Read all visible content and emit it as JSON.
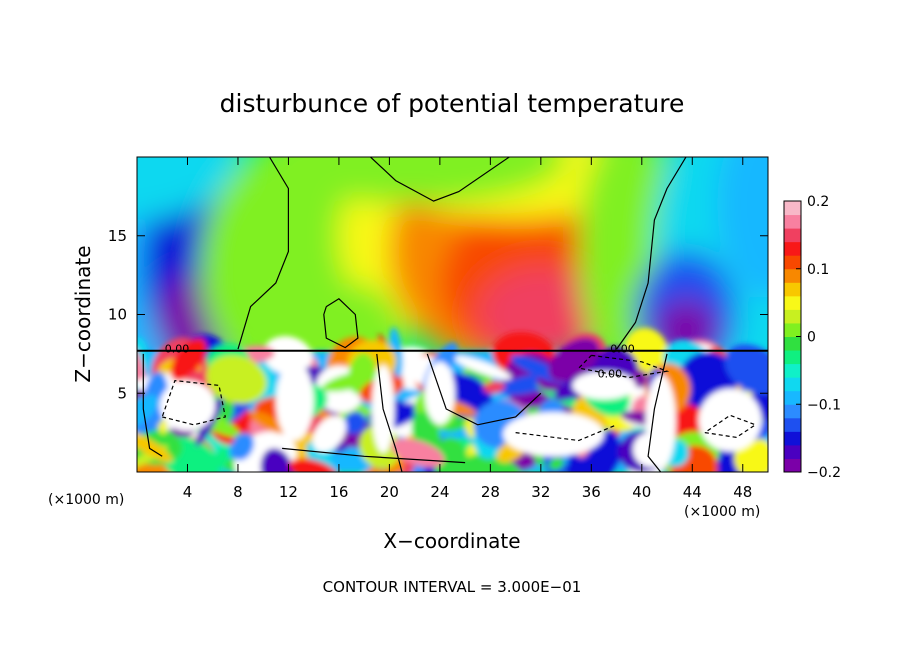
{
  "chart_data": {
    "type": "heatmap",
    "title": "disturbunce of potential temperature",
    "xlabel": "X−coordinate",
    "ylabel": "Z−coordinate",
    "x_unit_left": "(×1000 m)",
    "x_unit_right": "(×1000 m)",
    "footer": "CONTOUR INTERVAL = 3.000E−01",
    "xlim": [
      0,
      50
    ],
    "ylim": [
      0,
      20
    ],
    "x_ticks": [
      "4",
      "8",
      "12",
      "16",
      "20",
      "24",
      "28",
      "32",
      "36",
      "40",
      "44",
      "48"
    ],
    "x_tick_values": [
      4,
      8,
      12,
      16,
      20,
      24,
      28,
      32,
      36,
      40,
      44,
      48
    ],
    "y_ticks": [
      "5",
      "10",
      "15"
    ],
    "y_tick_values": [
      5,
      10,
      15
    ],
    "colorbar": {
      "range": [
        -0.2,
        0.2
      ],
      "ticks": [
        "0.2",
        "0.1",
        "0",
        "−0.1",
        "−0.2"
      ],
      "tick_values": [
        0.2,
        0.1,
        0,
        -0.1,
        -0.2
      ],
      "colors": [
        "#7b00a8",
        "#4a00c0",
        "#1010d8",
        "#1e50f0",
        "#2c8cff",
        "#18b8ff",
        "#10d8f0",
        "#10f0c8",
        "#10f080",
        "#30e040",
        "#80f020",
        "#c8f020",
        "#f8f818",
        "#f8c800",
        "#f88800",
        "#f84800",
        "#f81818",
        "#f04060",
        "#f880a0",
        "#f8b8c8"
      ]
    },
    "contour_labels": [
      "0.00",
      "0.00",
      "0.00"
    ],
    "field_description_cells": {
      "upper_layer_z_min": 7.7,
      "upper_layer_z_max": 20,
      "lower_layer_z_min": 0,
      "lower_layer_z_max": 7.7
    }
  }
}
